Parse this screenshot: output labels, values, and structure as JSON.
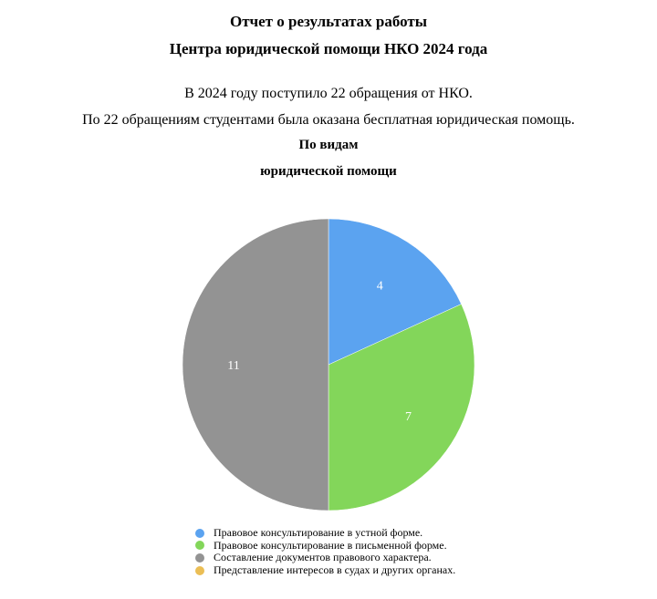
{
  "header": {
    "title_line1": "Отчет о результатах работы",
    "title_line2": "Центра юридической помощи НКО 2024 года"
  },
  "body": {
    "line1": "В 2024 году поступило 22 обращения от НКО.",
    "line2": "По 22 обращениям студентами была оказана бесплатная юридическая помощь."
  },
  "chart_data": {
    "type": "pie",
    "title_line1": "По видам",
    "title_line2": "юридической помощи",
    "categories": [
      "Правовое консультирование в устной форме.",
      "Правовое консультирование в письменной форме.",
      "Составление документов правового характера.",
      "Представление интересов в судах и других органах."
    ],
    "values": [
      4,
      7,
      11,
      0
    ],
    "colors": [
      "#5BA3F0",
      "#83D65A",
      "#939393",
      "#EBBE55"
    ],
    "start": "top",
    "direction": "clockwise",
    "legend_placement": "bottom"
  }
}
